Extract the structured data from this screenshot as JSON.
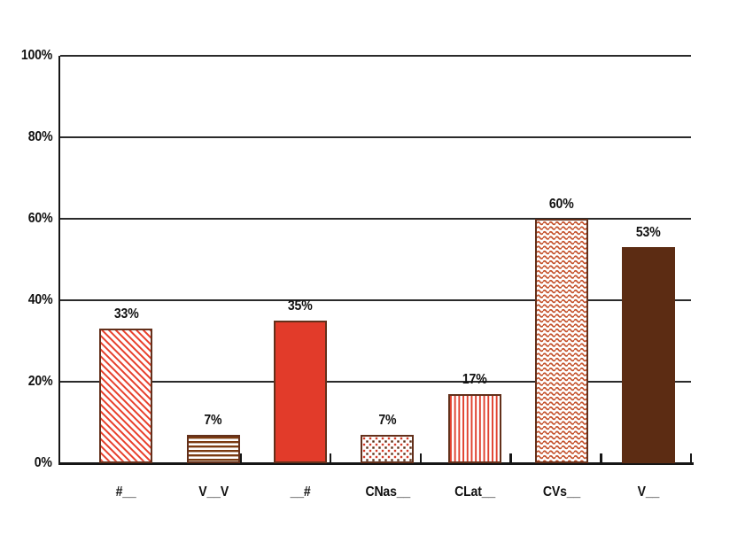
{
  "chart_data": {
    "type": "bar",
    "title": "",
    "xlabel": "",
    "ylabel": "",
    "categories": [
      "#__",
      "V__V",
      "__#",
      "CNas__",
      "CLat__",
      "CVs__",
      "V__"
    ],
    "values": [
      33,
      7,
      35,
      7,
      17,
      60,
      53
    ],
    "value_labels": [
      "33%",
      "7%",
      "35%",
      "7%",
      "17%",
      "60%",
      "53%"
    ],
    "bar_patterns": [
      "diagonal-stripes",
      "horizontal-stripes",
      "solid-red",
      "dots",
      "vertical-stripes",
      "waves",
      "solid-brown"
    ],
    "ylim": [
      0,
      100
    ],
    "y_tick_values": [
      0,
      20,
      40,
      60,
      80,
      100
    ],
    "y_tick_labels": [
      "0%",
      "20%",
      "40%",
      "60%",
      "80%",
      "100%"
    ],
    "grid": true,
    "legend": false,
    "colors": {
      "solid_red": "#E23B2A",
      "solid_brown": "#5C2C13",
      "stripe_red": "#E8402C",
      "stripe_brown": "#7B3A10",
      "dot_red": "#D23C28",
      "dot_brown": "#5C2C13",
      "vertical_red": "#E0402E",
      "wave_orange": "#C4512B",
      "bar_border": "#63301B",
      "axis": "#161616"
    }
  }
}
